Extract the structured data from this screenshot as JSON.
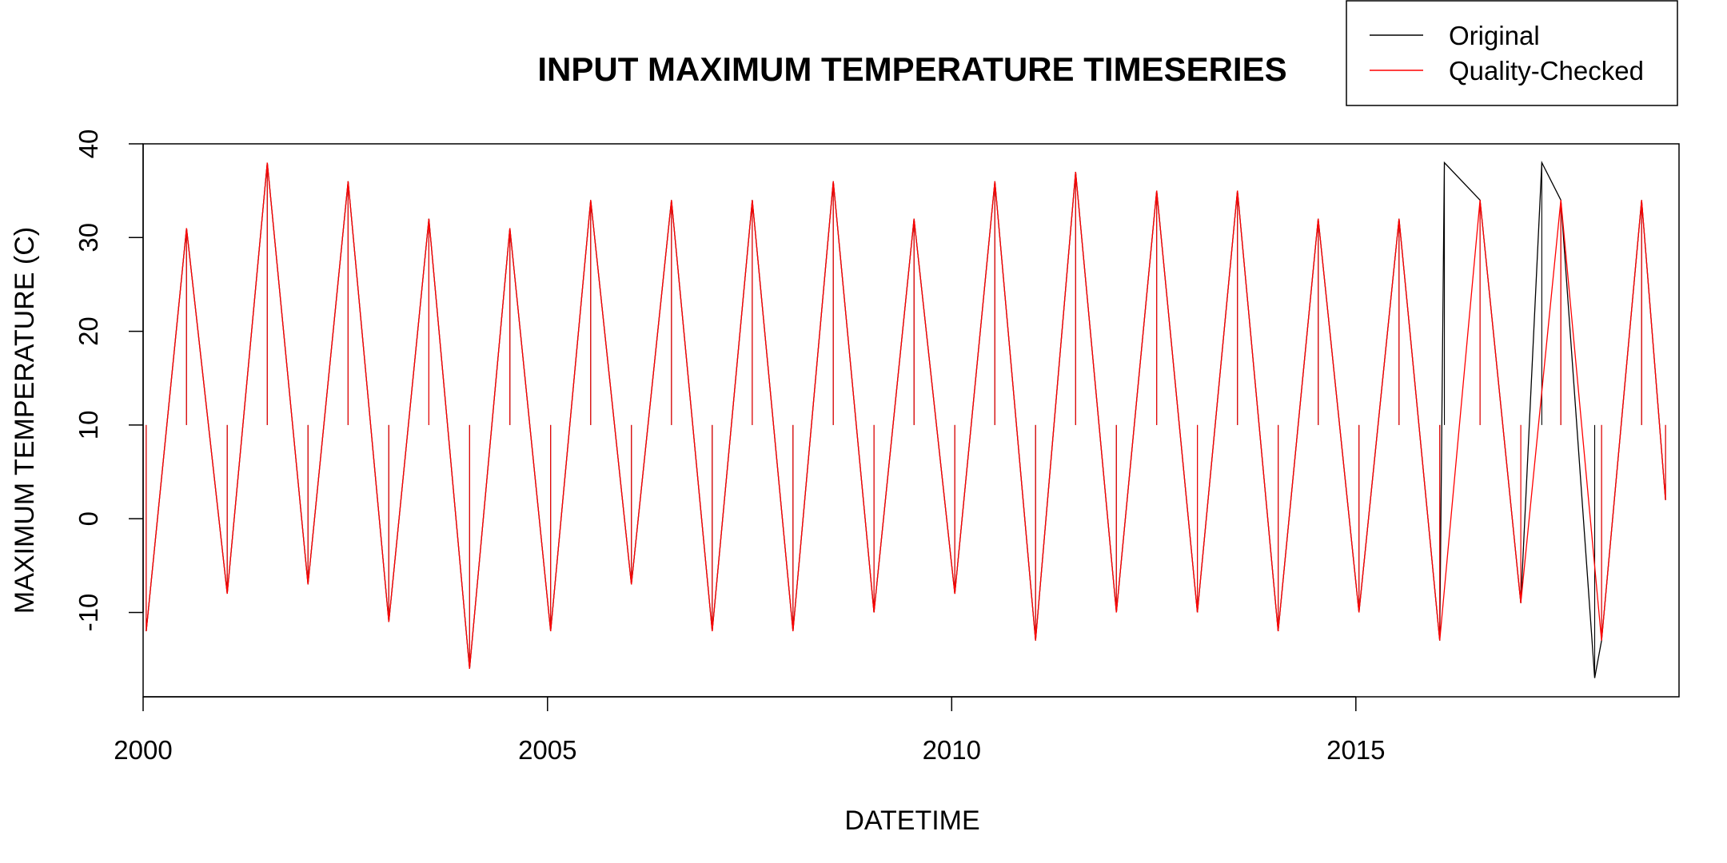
{
  "chart_data": {
    "type": "line",
    "title": "INPUT MAXIMUM TEMPERATURE TIMESERIES",
    "xlabel": "DATETIME",
    "ylabel": "MAXIMUM TEMPERATURE (C)",
    "xlim": [
      "2000-01-01",
      "2018-12-31"
    ],
    "ylim": [
      -19,
      40
    ],
    "x_ticks": [
      {
        "value": "2000-01-01",
        "label": "2000"
      },
      {
        "value": "2005-01-01",
        "label": "2005"
      },
      {
        "value": "2010-01-01",
        "label": "2010"
      },
      {
        "value": "2015-01-01",
        "label": "2015"
      }
    ],
    "y_ticks": [
      -10,
      0,
      10,
      20,
      30,
      40
    ],
    "grid": false,
    "legend": {
      "position": "top-right",
      "entries": [
        {
          "label": "Original",
          "color": "#000000"
        },
        {
          "label": "Quality-Checked",
          "color": "#ff0000"
        }
      ]
    },
    "series": [
      {
        "name": "Original",
        "color": "#000000",
        "x": [
          "2000-01-15",
          "2000-07-15",
          "2001-01-15",
          "2001-07-15",
          "2002-01-15",
          "2002-07-15",
          "2003-01-15",
          "2003-07-15",
          "2004-01-15",
          "2004-07-15",
          "2005-01-15",
          "2005-07-15",
          "2006-01-15",
          "2006-07-15",
          "2007-01-15",
          "2007-07-15",
          "2008-01-15",
          "2008-07-15",
          "2009-01-15",
          "2009-07-15",
          "2010-01-15",
          "2010-07-15",
          "2011-01-15",
          "2011-07-15",
          "2012-01-15",
          "2012-07-15",
          "2013-01-15",
          "2013-07-15",
          "2014-01-15",
          "2014-07-15",
          "2015-01-15",
          "2015-07-15",
          "2016-01-15",
          "2016-02-05",
          "2016-07-15",
          "2017-01-15",
          "2017-04-20",
          "2017-07-15",
          "2017-12-15",
          "2018-01-15",
          "2018-07-15",
          "2018-10-31"
        ],
        "y": [
          -12,
          31,
          -8,
          38,
          -7,
          36,
          -11,
          32,
          -16,
          31,
          -12,
          34,
          -7,
          34,
          -12,
          34,
          -12,
          36,
          -10,
          32,
          -8,
          36,
          -13,
          37,
          -10,
          35,
          -10,
          35,
          -12,
          32,
          -10,
          32,
          -13,
          38,
          34,
          -9,
          38,
          34,
          -17,
          -13,
          34,
          2
        ]
      },
      {
        "name": "Quality-Checked",
        "color": "#ff0000",
        "x": [
          "2000-01-15",
          "2000-07-15",
          "2001-01-15",
          "2001-07-15",
          "2002-01-15",
          "2002-07-15",
          "2003-01-15",
          "2003-07-15",
          "2004-01-15",
          "2004-07-15",
          "2005-01-15",
          "2005-07-15",
          "2006-01-15",
          "2006-07-15",
          "2007-01-15",
          "2007-07-15",
          "2008-01-15",
          "2008-07-15",
          "2009-01-15",
          "2009-07-15",
          "2010-01-15",
          "2010-07-15",
          "2011-01-15",
          "2011-07-15",
          "2012-01-15",
          "2012-07-15",
          "2013-01-15",
          "2013-07-15",
          "2014-01-15",
          "2014-07-15",
          "2015-01-15",
          "2015-07-15",
          "2016-01-15",
          "2016-07-15",
          "2017-01-15",
          "2017-07-15",
          "2018-01-15",
          "2018-07-15",
          "2018-10-31"
        ],
        "y": [
          -12,
          31,
          -8,
          38,
          -7,
          36,
          -11,
          32,
          -16,
          31,
          -12,
          34,
          -7,
          34,
          -12,
          34,
          -12,
          36,
          -10,
          32,
          -8,
          36,
          -13,
          37,
          -10,
          35,
          -10,
          35,
          -12,
          32,
          -10,
          32,
          -13,
          34,
          -9,
          34,
          -13,
          34,
          2
        ]
      }
    ]
  }
}
